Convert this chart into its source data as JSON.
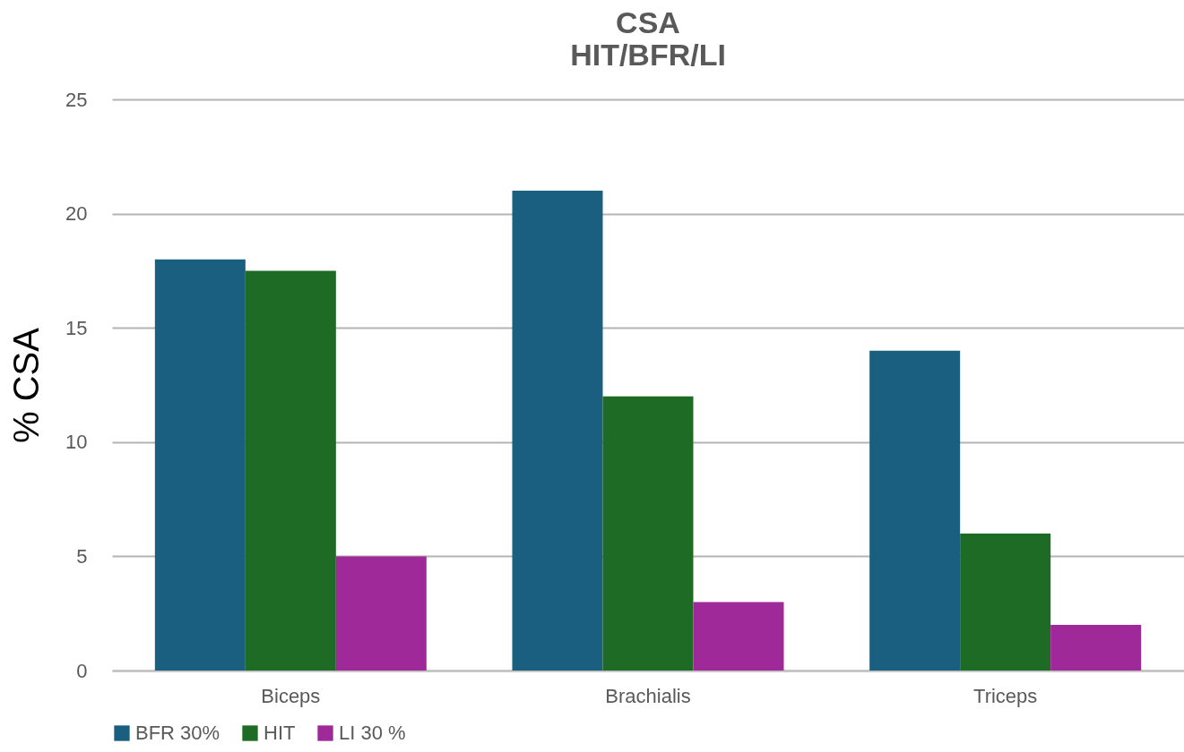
{
  "chart_data": {
    "type": "bar",
    "title": "CSA",
    "subtitle": "HIT/BFR/LI",
    "ylabel": "% CSA",
    "categories": [
      "Biceps",
      "Brachialis",
      "Triceps"
    ],
    "series": [
      {
        "name": "BFR 30%",
        "color": "#1a5e80",
        "values": [
          18,
          21,
          14
        ]
      },
      {
        "name": "HIT",
        "color": "#1e6b26",
        "values": [
          17.5,
          12,
          6
        ]
      },
      {
        "name": "LI 30 %",
        "color": "#a0299a",
        "values": [
          5,
          3,
          2
        ]
      }
    ],
    "ylim": [
      0,
      25
    ],
    "yticks": [
      0,
      5,
      10,
      15,
      20,
      25
    ],
    "grid": "y",
    "legend": "bottom"
  }
}
